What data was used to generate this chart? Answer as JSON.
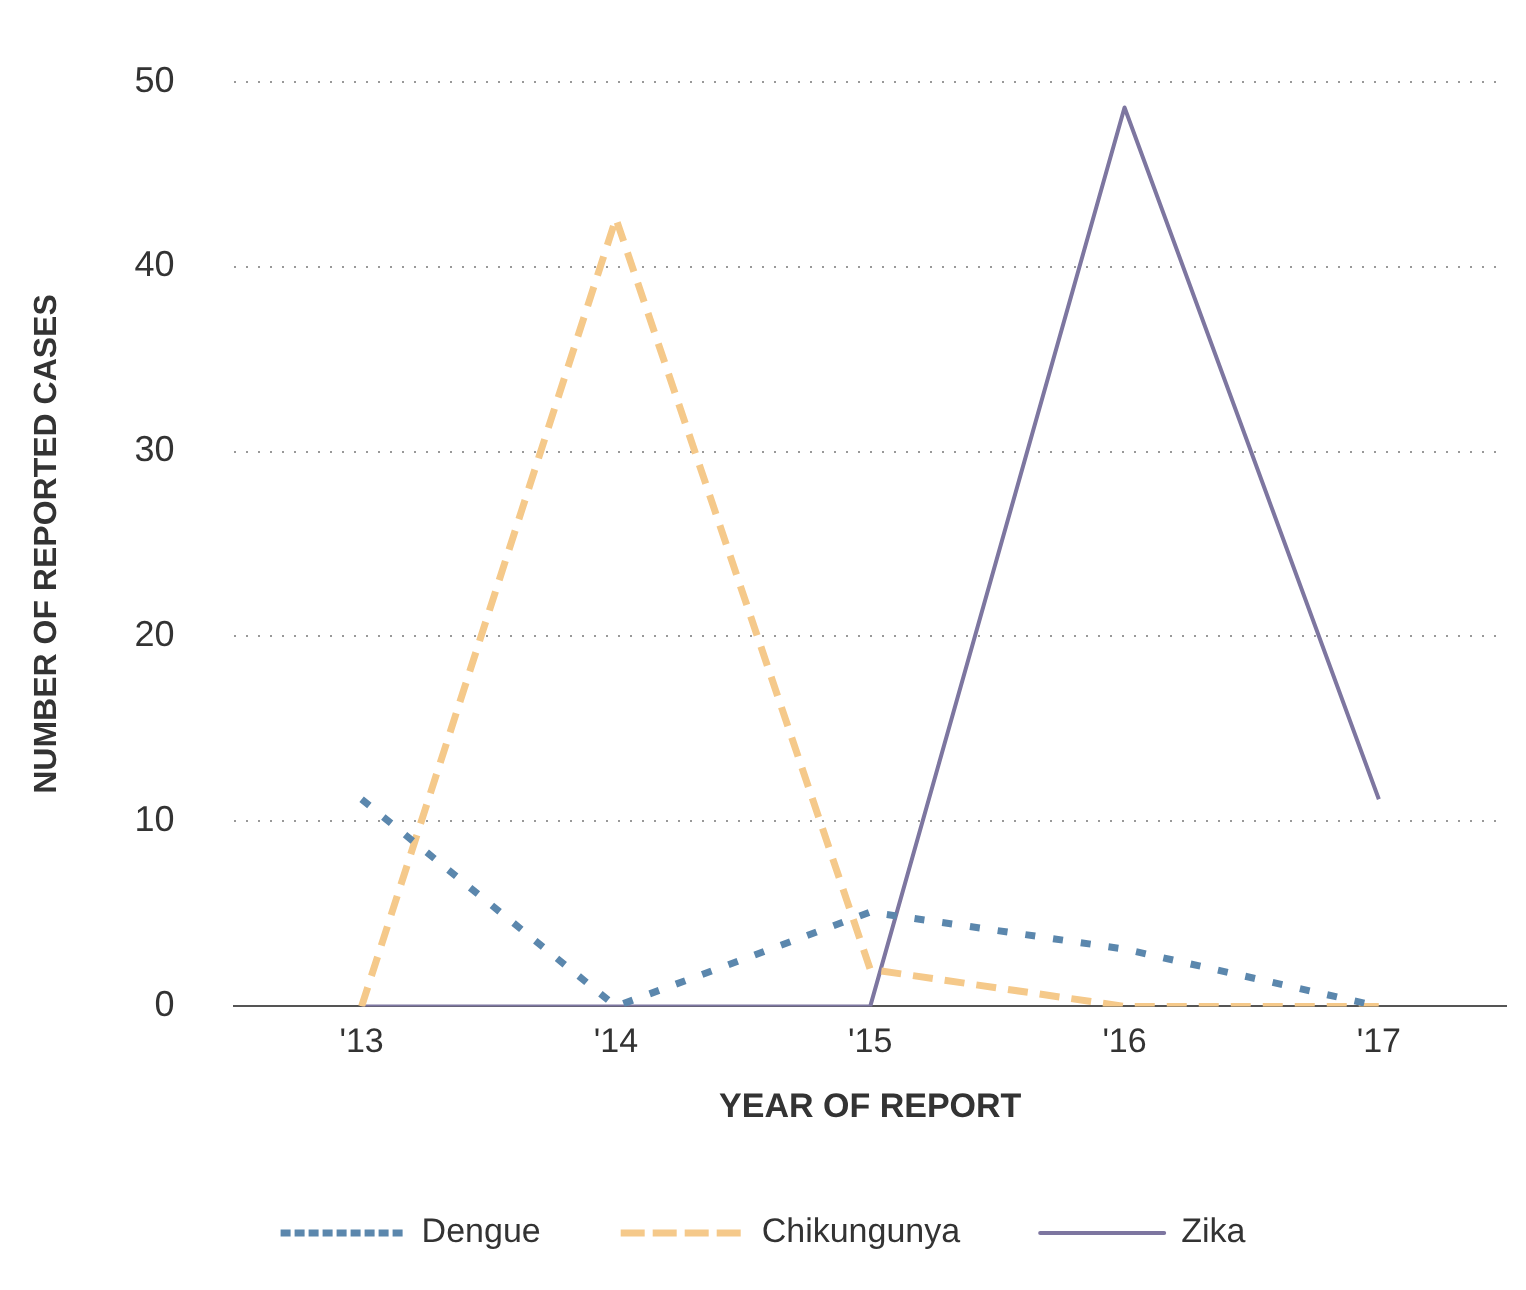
{
  "chart_data": {
    "type": "line",
    "xlabel": "YEAR OF REPORT",
    "ylabel": "NUMBER OF REPORTED CASES",
    "categories": [
      "'13",
      "'14",
      "'15",
      "'16",
      "'17"
    ],
    "series": [
      {
        "name": "Dengue",
        "color": "#5b87ad",
        "line_style": "dotted",
        "values": [
          11.2,
          0,
          5.1,
          3.1,
          0
        ]
      },
      {
        "name": "Chikungunya",
        "color": "#f5c98a",
        "line_style": "dashed",
        "values": [
          0,
          42.6,
          2,
          0,
          0
        ]
      },
      {
        "name": "Zika",
        "color": "#7d76a0",
        "line_style": "solid",
        "values": [
          0,
          0,
          0,
          48.6,
          11.2
        ]
      }
    ],
    "ylim": [
      0,
      50
    ],
    "yticks": [
      0,
      10,
      20,
      30,
      40,
      50
    ],
    "grid": "y",
    "legend": "bottom",
    "marker": "none"
  }
}
